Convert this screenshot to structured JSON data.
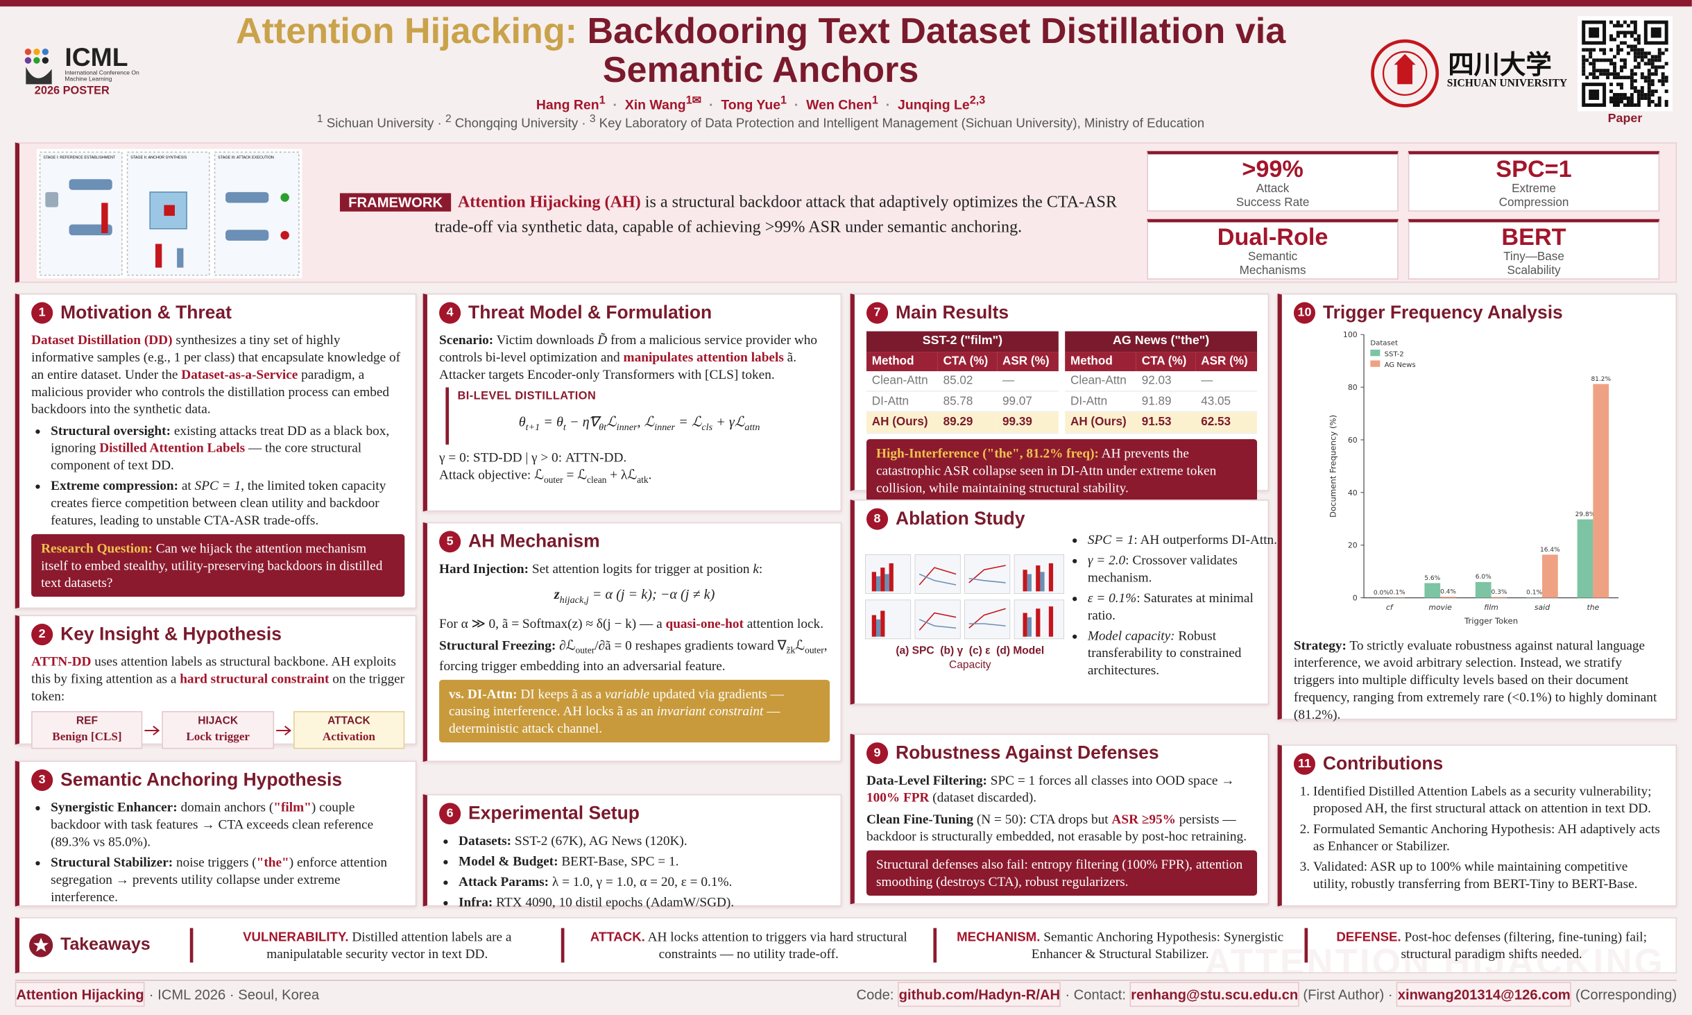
{
  "header": {
    "logo": {
      "name": "ICML",
      "sub": "International Conference On Machine Learning",
      "badge": "2026 POSTER"
    },
    "title": [
      "Attention Hijacking:",
      "Backdooring Text Dataset Distillation via Semantic Anchors"
    ],
    "sep": "·",
    "corresponding_mark": "✉",
    "authors": [
      {
        "name": "Hang Ren",
        "sup": "1"
      },
      {
        "name": "Xin Wang",
        "sup": "1"
      },
      {
        "name": "Tong Yue",
        "sup": "1"
      },
      {
        "name": "Wen Chen",
        "sup": "1"
      },
      {
        "name": "Junqing Le",
        "sup": "2,3"
      }
    ],
    "affiliations": [
      {
        "sup": "1",
        "name": "Sichuan University"
      },
      {
        "sup": "2",
        "name": "Chongqing University"
      },
      {
        "sup": "3",
        "name": "Key Laboratory of Data Protection and Intelligent Management (Sichuan University), Ministry of Education"
      }
    ],
    "university": {
      "cn": "四川大学",
      "en": "SICHUAN UNIVERSITY"
    },
    "qr_label": "Paper"
  },
  "framework": {
    "tag": "FRAMEWORK",
    "text": [
      "Attention Hijacking (AH)",
      " is a structural backdoor attack that adaptively optimizes the CTA-ASR trade-off via synthetic data, capable of achieving >99% ASR under semantic anchoring."
    ],
    "figure_labels": [
      "STAGE I: REFERENCE ESTABLISHMENT",
      "STAGE II: ANCHOR SYNTHESIS",
      "STAGE III: ATTACK EXECUTION"
    ]
  },
  "stats": [
    {
      "value": ">99%",
      "label": [
        "Attack",
        "Success Rate"
      ]
    },
    {
      "value": "SPC=1",
      "label": [
        "Extreme",
        "Compression"
      ]
    },
    {
      "value": "Dual-Role",
      "label": [
        "Semantic",
        "Mechanisms"
      ]
    },
    {
      "value": "BERT",
      "label": [
        "Tiny—Base",
        "Scalability"
      ]
    }
  ],
  "sections": {
    "motivation": {
      "num": "1",
      "title": "Motivation & Threat",
      "intro": [
        "Dataset Distillation (DD)",
        " synthesizes a tiny set of highly informative samples (e.g., 1 per class) that encapsulate knowledge of an entire dataset. Under the ",
        "Dataset-as-a-Service",
        " paradigm, a malicious provider who controls the distillation process can embed backdoors into the synthetic data."
      ],
      "bullets": [
        [
          "Structural oversight:",
          " existing attacks treat DD as a black box, ignoring ",
          "Distilled Attention Labels",
          " — the core structural component of text DD."
        ],
        [
          "Extreme compression:",
          " at ",
          "SPC = 1",
          ", the limited token capacity creates fierce competition between clean utility and backdoor features, leading to unstable CTA-ASR trade-offs."
        ]
      ],
      "question": [
        "Research Question:",
        " Can we hijack the attention mechanism itself to embed stealthy, utility-preserving backdoors in distilled text datasets?"
      ]
    },
    "insight": {
      "num": "2",
      "title": "Key Insight & Hypothesis",
      "text": [
        "ATTN-DD",
        " uses attention labels as structural backbone. AH exploits this by fixing attention as a ",
        "hard structural constraint",
        " on the trigger token:"
      ],
      "flow": [
        {
          "head": "REF",
          "sub": "Benign [CLS]"
        },
        {
          "head": "HIJACK",
          "sub": "Lock trigger"
        },
        {
          "head": "ATTACK",
          "sub": "Activation"
        }
      ]
    },
    "anchoring": {
      "num": "3",
      "title": "Semantic Anchoring Hypothesis",
      "bullets": [
        [
          "Synergistic Enhancer:",
          " domain anchors (",
          "\"film\"",
          ") couple backdoor with task features → CTA exceeds clean reference (89.3% vs 85.0%)."
        ],
        [
          "Structural Stabilizer:",
          " noise triggers (",
          "\"the\"",
          ") enforce attention segregation → prevents utility collapse under extreme interference."
        ]
      ]
    },
    "threat": {
      "num": "4",
      "title": "Threat Model & Formulation",
      "scenario": [
        "Scenario:",
        " Victim downloads ",
        "D̃",
        " from a malicious service provider who controls bi-level optimization and ",
        "manipulates attention labels",
        " ã. Attacker targets Encoder-only Transformers with [CLS] token."
      ],
      "box_label": "BI-LEVEL DISTILLATION",
      "equation": [
        "θ",
        "t+1",
        " = θ",
        "t",
        " − η̃∇",
        "θt",
        "ℒ",
        "inner",
        ",     ℒ",
        "inner",
        " = ℒ",
        "cls",
        " + γℒ",
        "attn"
      ],
      "modes": "γ = 0: STD-DD   |   γ > 0: ATTN-DD.",
      "objective": [
        "Attack objective: ℒ",
        "outer",
        " = ℒ",
        "clean",
        " + λℒ",
        "atk",
        "."
      ]
    },
    "mechanism": {
      "num": "5",
      "title": "AH Mechanism",
      "injection": [
        "Hard Injection:",
        " Set attention logits for trigger at position ",
        "k",
        ":"
      ],
      "equation": [
        "z",
        "hijack,j",
        " = α (j = k);   −α (j ≠ k)"
      ],
      "lock": [
        "For α ≫ 0, ã = Softmax(z) ≈ δ(j − k) — a ",
        "quasi-one-hot",
        " attention lock."
      ],
      "freezing": [
        "Structural Freezing:",
        " ∂ℒ",
        "outer",
        "/∂ã = 0 reshapes gradients toward ∇",
        "z̃k",
        "ℒ",
        "outer",
        ", forcing trigger embedding into an adversarial feature."
      ],
      "versus": [
        "vs. DI-Attn:",
        " DI keeps ã as a ",
        "variable",
        " updated via gradients — causing interference. AH locks ã as an ",
        "invariant constraint",
        " — deterministic attack channel."
      ]
    },
    "setup": {
      "num": "6",
      "title": "Experimental Setup",
      "bullets": [
        [
          "Datasets:",
          " SST-2 (67K), AG News (120K)."
        ],
        [
          "Model & Budget:",
          " BERT-Base, SPC = 1."
        ],
        [
          "Attack Params:",
          " λ = 1.0, γ = 1.0, α = 20, ε = 0.1%."
        ],
        [
          "Infra:",
          " RTX 4090, 10 distil epochs (AdamW/SGD)."
        ]
      ]
    },
    "results": {
      "num": "7",
      "title": "Main Results",
      "tables": [
        {
          "title": "SST-2 (\"film\")",
          "columns": [
            "Method",
            "CTA (%)",
            "ASR (%)"
          ],
          "rows": [
            [
              "Clean-Attn",
              "85.02",
              "—"
            ],
            [
              "DI-Attn",
              "85.78",
              "99.07"
            ],
            [
              "AH (Ours)",
              "89.29",
              "99.39"
            ]
          ]
        },
        {
          "title": "AG News (\"the\")",
          "columns": [
            "Method",
            "CTA (%)",
            "ASR (%)"
          ],
          "rows": [
            [
              "Clean-Attn",
              "92.03",
              "—"
            ],
            [
              "DI-Attn",
              "91.89",
              "43.05"
            ],
            [
              "AH (Ours)",
              "91.53",
              "62.53"
            ]
          ]
        }
      ],
      "note": [
        "High-Interference (\"the\", 81.2% freq):",
        " AH prevents the catastrophic ASR collapse seen in DI-Attn under extreme token collision, while maintaining structural stability."
      ]
    },
    "ablation": {
      "num": "8",
      "title": "Ablation Study",
      "captions": [
        "(a) SPC",
        "(b) γ",
        "(c) ε",
        "(d) Model",
        "Capacity"
      ],
      "bullets": [
        [
          "SPC = 1",
          ": AH outperforms DI-Attn."
        ],
        [
          "γ = 2.0",
          ": Crossover validates mechanism."
        ],
        [
          "ε = 0.1%",
          ": Saturates at minimal ratio."
        ],
        [
          "Model capacity:",
          " Robust transferability to constrained architectures."
        ]
      ]
    },
    "robustness": {
      "num": "9",
      "title": "Robustness Against Defenses",
      "filtering": [
        "Data-Level Filtering:",
        " SPC = 1 forces all classes into OOD space → ",
        "100% FPR",
        " (dataset discarded)."
      ],
      "finetuning": [
        "Clean Fine-Tuning",
        " (N = 50): CTA drops but ",
        "ASR ≥95%",
        " persists — backdoor is structurally embedded, not erasable by post-hoc retraining."
      ],
      "box": "Structural defenses also fail: entropy filtering (100% FPR), attention smoothing (destroys CTA), robust regularizers."
    },
    "frequency": {
      "num": "10",
      "title": "Trigger Frequency Analysis",
      "strategy": [
        "Strategy:",
        " To strictly evaluate robustness against natural language interference, we avoid arbitrary selection. Instead, we stratify triggers into multiple difficulty levels based on their document frequency, ranging from extremely rare (<0.1%) to highly dominant (81.2%)."
      ]
    },
    "contributions": {
      "num": "11",
      "title": "Contributions",
      "items": [
        "Identified Distilled Attention Labels as a security vulnerability; proposed AH, the first structural attack on attention in text DD.",
        "Formulated Semantic Anchoring Hypothesis: AH adaptively acts as Enhancer or Stabilizer.",
        "Validated: ASR up to 100% while maintaining competitive utility, robustly transferring from BERT-Tiny to BERT-Base."
      ]
    }
  },
  "takeaways": {
    "title": "Takeaways",
    "items": [
      {
        "head": "VULNERABILITY.",
        "text": " Distilled attention labels are a manipulatable security vector in text DD."
      },
      {
        "head": "ATTACK.",
        "text": " AH locks attention to triggers via hard structural constraints — no utility trade-off."
      },
      {
        "head": "MECHANISM.",
        "text": " Semantic Anchoring Hypothesis: Synergistic Enhancer & Structural Stabilizer."
      },
      {
        "head": "DEFENSE.",
        "text": " Post-hoc defenses (filtering, fine-tuning) fail; structural paradigm shifts needed."
      }
    ],
    "watermark": "ATTENTION HIJACKING"
  },
  "footer": {
    "left": [
      "Attention Hijacking",
      " · ICML 2026 · Seoul, Korea"
    ],
    "right": [
      "Code: ",
      "github.com/Hadyn-R/AH",
      "  ·  Contact: ",
      "renhang@stu.scu.edu.cn",
      " (First Author)  ·  ",
      "xinwang201314@126.com",
      " (Corresponding)"
    ]
  },
  "chart_data": {
    "type": "bar",
    "ylabel": "Document Frequency (%)",
    "xlabel": "Trigger Token",
    "legend_title": "Dataset",
    "legend": "upper left",
    "categories": [
      "cf",
      "movie",
      "film",
      "said",
      "the"
    ],
    "series": [
      {
        "name": "SST-2",
        "color": "#7cc4a3",
        "values": [
          0.0,
          5.6,
          6.0,
          0.1,
          29.8
        ],
        "value_labels": [
          "0.0%",
          "5.6%",
          "6.0%",
          "0.1%",
          "29.8%"
        ]
      },
      {
        "name": "AG News",
        "color": "#efa283",
        "values": [
          0.1,
          0.4,
          0.3,
          16.4,
          81.2
        ],
        "value_labels": [
          "0.1%",
          "0.4%",
          "0.3%",
          "16.4%",
          "81.2%"
        ]
      }
    ],
    "ylim": [
      0,
      100
    ],
    "yticks": [
      0,
      20,
      40,
      60,
      80,
      100
    ],
    "grid": false
  }
}
